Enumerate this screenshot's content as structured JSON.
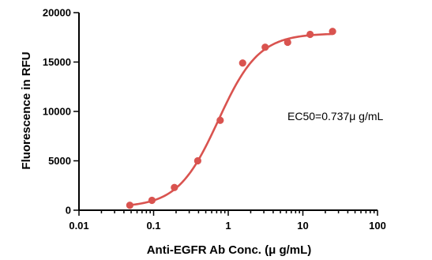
{
  "chart_data": {
    "type": "scatter",
    "title": "",
    "xlabel": "Anti-EGFR Ab Conc. (μ g/mL)",
    "ylabel": "Fluorescence in RFU",
    "x_scale": "log",
    "xlim": [
      0.01,
      100
    ],
    "ylim": [
      0,
      20000
    ],
    "x_ticks": [
      "0.01",
      "0.1",
      "1",
      "10",
      "100"
    ],
    "y_ticks": [
      "0",
      "5000",
      "10000",
      "15000",
      "20000"
    ],
    "annotation": "EC50=0.737μ g/mL",
    "grid": false,
    "series": [
      {
        "x": [
          0.048,
          0.095,
          0.19,
          0.39,
          0.78,
          1.56,
          3.125,
          6.25,
          12.5,
          25
        ],
        "y": [
          500,
          1000,
          2300,
          5000,
          9100,
          14900,
          16500,
          17000,
          17800,
          18100
        ]
      }
    ],
    "fit": {
      "model": "4PL",
      "bottom": 300,
      "top": 17900,
      "ec50": 0.737,
      "hill": 1.6
    },
    "color": "#d9534f"
  }
}
